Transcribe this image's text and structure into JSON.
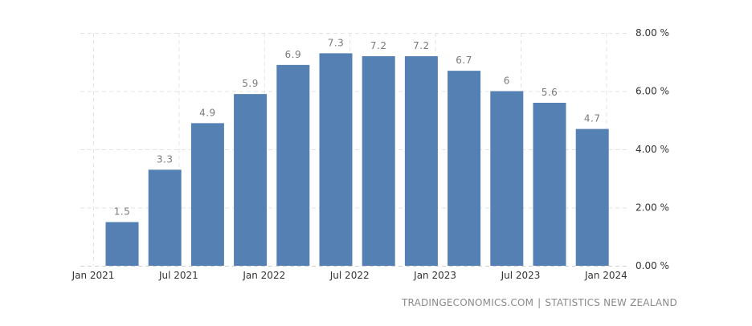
{
  "chart_data": {
    "type": "bar",
    "categories": [
      "Q1 2021",
      "Q2 2021",
      "Q3 2021",
      "Q4 2021",
      "Q1 2022",
      "Q2 2022",
      "Q3 2022",
      "Q4 2022",
      "Q1 2023",
      "Q2 2023",
      "Q3 2023",
      "Q4 2023"
    ],
    "values": [
      1.5,
      3.3,
      4.9,
      5.9,
      6.9,
      7.3,
      7.2,
      7.2,
      6.7,
      6,
      5.6,
      4.7
    ],
    "data_labels": [
      "1.5",
      "3.3",
      "4.9",
      "5.9",
      "6.9",
      "7.3",
      "7.2",
      "7.2",
      "6.7",
      "6",
      "5.6",
      "4.7"
    ],
    "x_tick_labels": [
      "Jan 2021",
      "Jul 2021",
      "Jan 2022",
      "Jul 2022",
      "Jan 2023",
      "Jul 2023",
      "Jan 2024"
    ],
    "y_tick_labels": [
      "0.00 %",
      "2.00 %",
      "4.00 %",
      "6.00 %",
      "8.00 %"
    ],
    "y_ticks": [
      0,
      2,
      4,
      6,
      8
    ],
    "ylim": [
      0,
      8
    ],
    "y_axis_position": "right",
    "grid": true,
    "bar_color": "#5580b3",
    "title": "",
    "xlabel": "",
    "ylabel": ""
  },
  "source": {
    "site": "TRADINGECONOMICS.COM",
    "separator": "|",
    "provider": "STATISTICS NEW ZEALAND"
  }
}
